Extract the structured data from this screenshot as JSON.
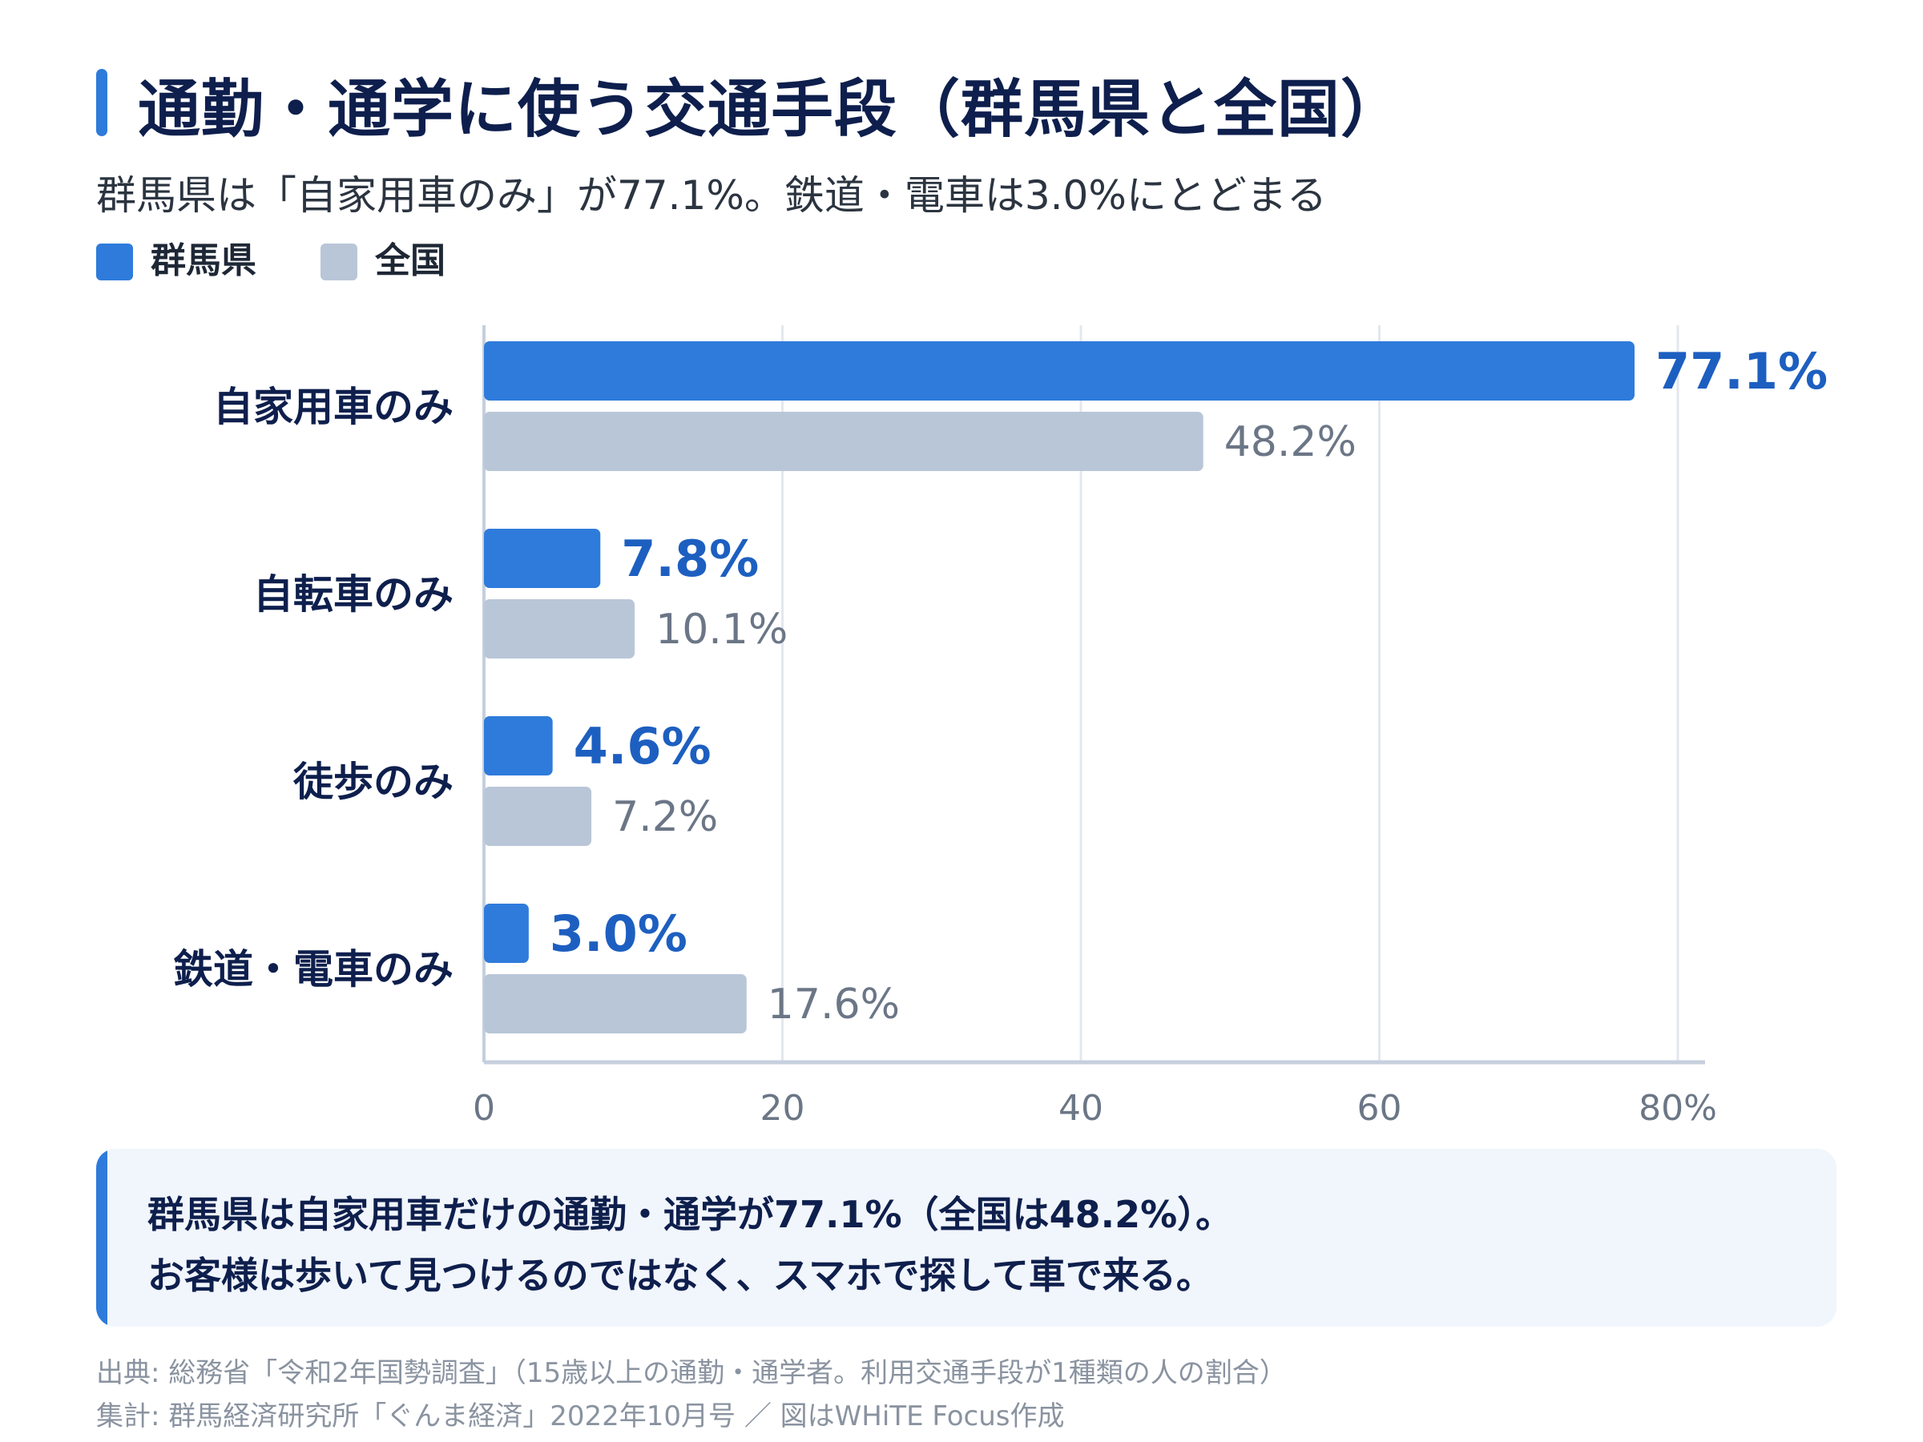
{
  "title": "通勤・通学に使う交通手段（群馬県と全国）",
  "subtitle": "群馬県は「自家用車のみ」が77.1%。鉄道・電車は3.0%にとどまる",
  "legend": [
    {
      "label": "群馬県",
      "color": "#2E7BDB"
    },
    {
      "label": "全国",
      "color": "#B9C6D8"
    }
  ],
  "chart_data": {
    "type": "bar",
    "orientation": "horizontal",
    "categories": [
      "自家用車のみ",
      "自転車のみ",
      "徒歩のみ",
      "鉄道・電車のみ"
    ],
    "series": [
      {
        "name": "群馬県",
        "values": [
          77.1,
          7.8,
          4.6,
          3.0
        ],
        "labels": [
          "77.1%",
          "7.8%",
          "4.6%",
          "3.0%"
        ],
        "color": "#2E7BDB",
        "label_color": "#1D5FC0"
      },
      {
        "name": "全国",
        "values": [
          48.2,
          10.1,
          7.2,
          17.6
        ],
        "labels": [
          "48.2%",
          "10.1%",
          "7.2%",
          "17.6%"
        ],
        "color": "#B9C6D8",
        "label_color": "#6B7686"
      }
    ],
    "x_ticks": [
      0,
      20,
      40,
      60,
      80
    ],
    "x_tick_labels": [
      "0",
      "20",
      "40",
      "60",
      "80%"
    ],
    "xlim": [
      0,
      80
    ],
    "grid": true,
    "legend_position": "top-left"
  },
  "callout": {
    "line1": "群馬県は自家用車だけの通勤・通学が77.1%（全国は48.2%）。",
    "line2": "お客様は歩いて見つけるのではなく、スマホで探して車で来る。"
  },
  "source": {
    "line1": "出典: 総務省「令和2年国勢調査」（15歳以上の通勤・通学者。利用交通手段が1種類の人の割合）",
    "line2": "集計: 群馬経済研究所「ぐんま経済」2022年10月号 ／ 図はWHiTE Focus作成"
  }
}
